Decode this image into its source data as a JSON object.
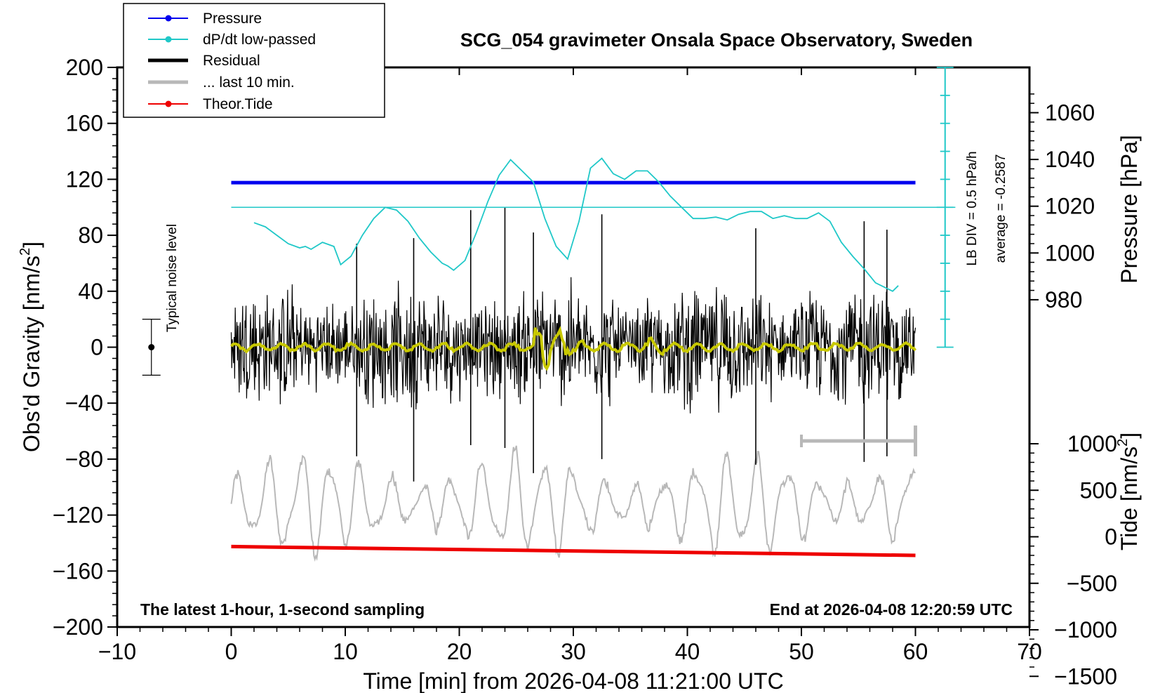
{
  "chart_data": {
    "type": "line",
    "title": "SCG_054 gravimeter Onsala Space Observatory, Sweden",
    "xlabel": "Time [min] from 2026-04-08 11:21:00 UTC",
    "ylabel_left_main": "Obs'd Gravity [nm/s",
    "ylabel_left_sup": "2",
    "ylabel_left_end": "]",
    "ylabel_right_top": "Pressure [hPa]",
    "ylabel_right_bottom_main": "Tide [nm/s",
    "ylabel_right_bottom_sup": "2",
    "ylabel_right_bottom_end": "]",
    "x_range": [
      -10,
      70
    ],
    "x_ticks": [
      -10,
      0,
      10,
      20,
      30,
      40,
      50,
      60,
      70
    ],
    "x_tick_labels": [
      "−10",
      "0",
      "10",
      "20",
      "30",
      "40",
      "50",
      "60",
      "70"
    ],
    "y_range": [
      -200,
      200
    ],
    "y_ticks": [
      200,
      160,
      120,
      80,
      40,
      0,
      -40,
      -80,
      -120,
      -160,
      -200
    ],
    "y_tick_labels": [
      "200",
      "160",
      "120",
      "80",
      "40",
      "0",
      "−40",
      "−80",
      "−120",
      "−160",
      "−200"
    ],
    "pressure_ticks": [
      1060,
      1040,
      1020,
      1000,
      980
    ],
    "pressure_tick_labels": [
      "1060",
      "1040",
      "1020",
      "1000",
      "980"
    ],
    "tide_ticks": [
      1000,
      500,
      0,
      -500,
      -1000,
      -1500
    ],
    "tide_tick_labels": [
      "1000",
      "500",
      "0",
      "−500",
      "−1000",
      "−1500"
    ],
    "annotations": {
      "bottom_left": "The latest 1-hour, 1-second sampling",
      "bottom_right": "End at 2026-04-08 12:20:59 UTC",
      "noise_label": "Typical noise level",
      "lb_div": "LB DIV = 0.5 hPa/h",
      "average": "average = -0.2587"
    },
    "noise_bar": {
      "x": -7,
      "center": 0,
      "half_range": 20
    },
    "legend": [
      {
        "label": "Pressure",
        "color": "#0000ee",
        "marker": true
      },
      {
        "label": "dP/dt low-passed",
        "color": "#20c8c8",
        "marker": true
      },
      {
        "label": "Residual",
        "color": "#000000",
        "marker": false
      },
      {
        "label": "... last 10 min.",
        "color": "#b8b8b8",
        "marker": false
      },
      {
        "label": "Theor.Tide",
        "color": "#ee0000",
        "marker": true
      }
    ],
    "series": {
      "pressure": {
        "name": "Pressure",
        "color": "#0000ee",
        "x": [
          0,
          60
        ],
        "hpa": [
          1030.1,
          1030.1
        ]
      },
      "tide": {
        "name": "Theor.Tide",
        "color": "#ee0000",
        "x": [
          0,
          60
        ],
        "nms2": [
          -105,
          -200
        ]
      },
      "dpdt": {
        "name": "dP/dt low-passed",
        "color": "#20c8c8",
        "y_pos": [
          89,
          86,
          80,
          74,
          71,
          72,
          70,
          75,
          72,
          59,
          65,
          80,
          92,
          100,
          98,
          90,
          78,
          68,
          60,
          58,
          55,
          62,
          82,
          104,
          123,
          134,
          126,
          118,
          92,
          72,
          63,
          90,
          128,
          135,
          124,
          120,
          126,
          126,
          118,
          108,
          100,
          92,
          92,
          93,
          91,
          95,
          97,
          97,
          92,
          94,
          92,
          92,
          96,
          90,
          75,
          65,
          56,
          46,
          42,
          40,
          44
        ],
        "x": [
          2,
          3,
          4,
          5,
          6,
          6.5,
          7,
          8,
          9,
          9.6,
          10.5,
          11.5,
          12.5,
          13.5,
          14.5,
          15.5,
          16.5,
          17.5,
          18.5,
          19,
          19.5,
          20.5,
          21.5,
          22.5,
          23.5,
          24.5,
          25.5,
          26.5,
          27.5,
          28.5,
          29.5,
          30.5,
          31.5,
          32.5,
          33.5,
          34.5,
          35.5,
          36.5,
          37.5,
          38.5,
          39.5,
          40.5,
          41.5,
          42.5,
          43.5,
          44.5,
          45.5,
          46.5,
          47.5,
          48.5,
          49.5,
          50.5,
          51.5,
          52.5,
          53.5,
          54.5,
          55.5,
          56.5,
          57.5,
          58,
          58.5
        ]
      },
      "residual": {
        "name": "Residual",
        "color": "#000000",
        "x_range": [
          0,
          60
        ]
      },
      "last10": {
        "name": "... last 10 min.",
        "color": "#b8b8b8",
        "x_range": [
          0,
          60
        ]
      },
      "lowpassed": {
        "name": "residual low-passed",
        "color": "#c8c800"
      },
      "marker_last10": {
        "x_range": [
          50,
          60
        ],
        "y": -67
      }
    },
    "reference_line_y": 100
  }
}
